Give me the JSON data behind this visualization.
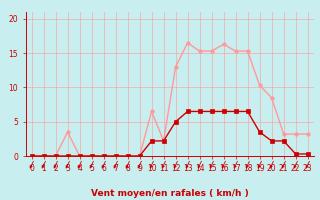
{
  "x": [
    0,
    1,
    2,
    3,
    4,
    5,
    6,
    7,
    8,
    9,
    10,
    11,
    12,
    13,
    14,
    15,
    16,
    17,
    18,
    19,
    20,
    21,
    22,
    23
  ],
  "rafales": [
    0,
    0,
    0,
    3.5,
    0,
    0,
    0,
    0,
    0,
    0,
    6.5,
    2.2,
    13,
    16.5,
    15.3,
    15.3,
    16.3,
    15.3,
    15.3,
    10.3,
    8.5,
    3.2,
    3.2,
    3.2
  ],
  "moyen": [
    0,
    0,
    0,
    0,
    0,
    0,
    0,
    0,
    0,
    0,
    2.2,
    2.2,
    5.0,
    6.5,
    6.5,
    6.5,
    6.5,
    6.5,
    6.5,
    3.5,
    2.2,
    2.2,
    0.3,
    0.3
  ],
  "rafales_color": "#FF9999",
  "moyen_color": "#CC0000",
  "bg_color": "#C8EEF0",
  "grid_color": "#FF9999",
  "xlabel": "Vent moyen/en rafales ( km/h )",
  "ylabel_ticks": [
    0,
    5,
    10,
    15,
    20
  ],
  "xlim": [
    -0.5,
    23.5
  ],
  "ylim": [
    0,
    21
  ],
  "marker_size": 2.5,
  "line_width": 1.0,
  "xlabel_color": "#CC0000",
  "xlabel_fontsize": 6.5,
  "tick_color": "#CC0000",
  "tick_fontsize": 5.5,
  "arrow_color": "#CC0000",
  "axis_color": "#CC0000"
}
